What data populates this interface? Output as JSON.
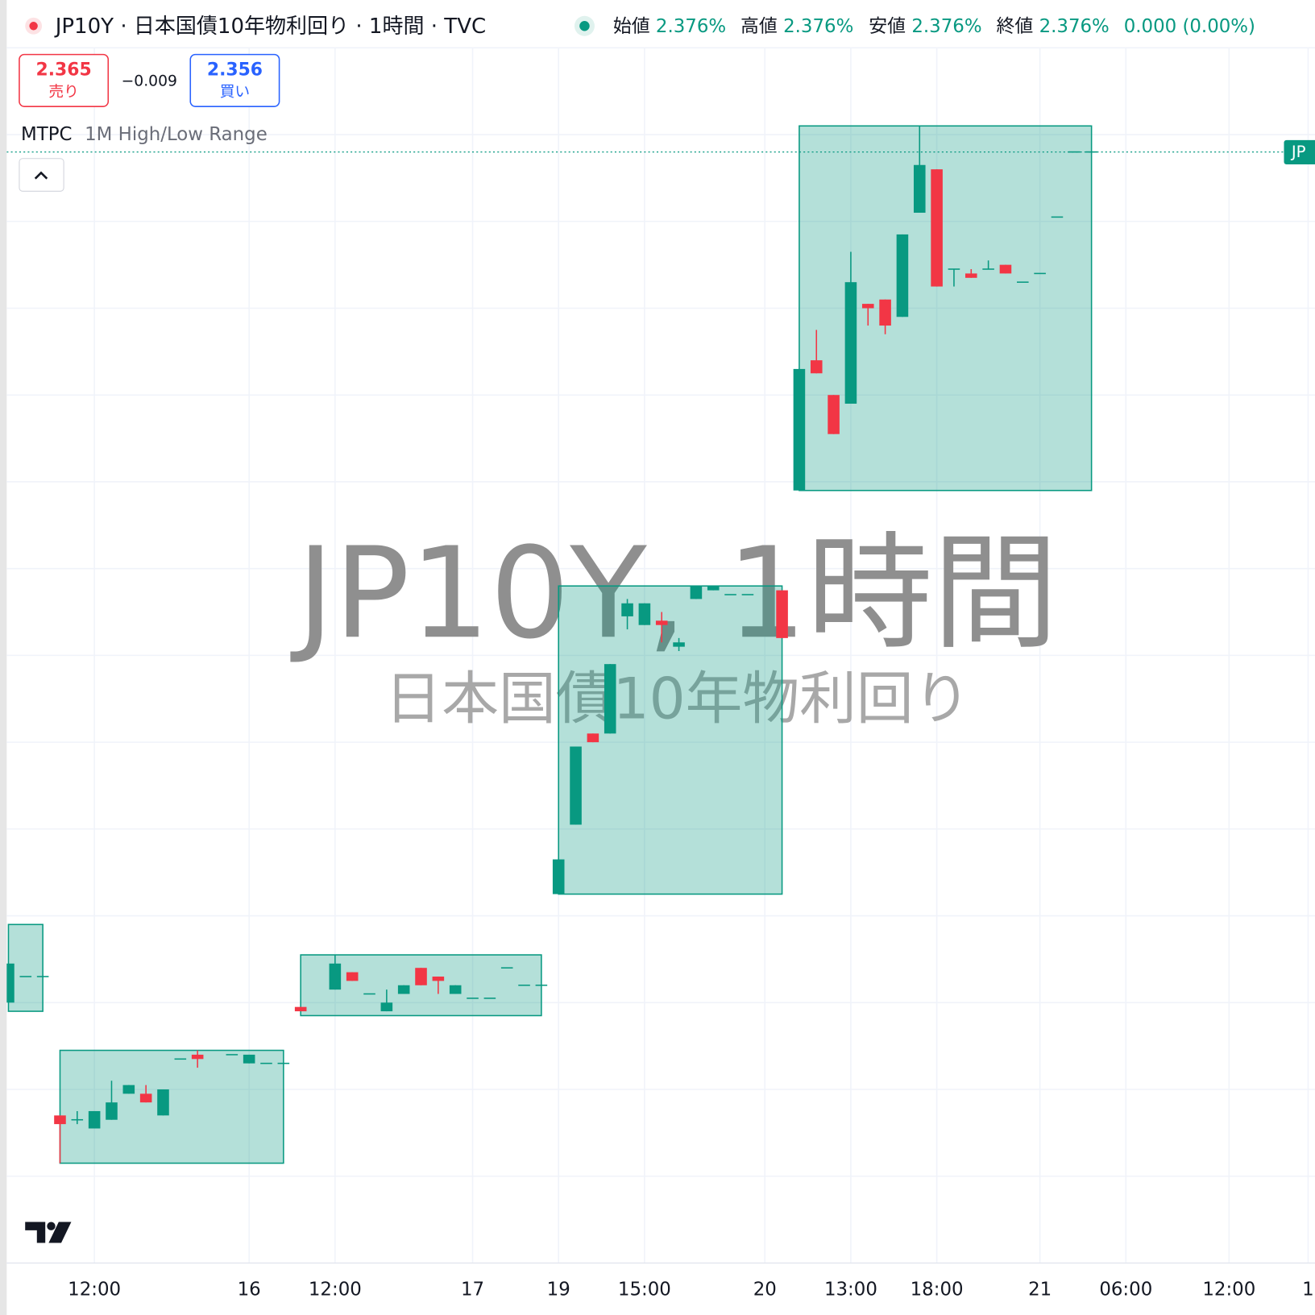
{
  "header": {
    "title": "JP10Y · 日本国債10年物利回り · 1時間 · TVC",
    "ohlc": [
      {
        "label": "始値",
        "value": "2.376%"
      },
      {
        "label": "高値",
        "value": "2.376%"
      },
      {
        "label": "安値",
        "value": "2.376%"
      },
      {
        "label": "終値",
        "value": "2.376%"
      }
    ],
    "change": "0.000 (0.00%)"
  },
  "trade": {
    "sell_price": "2.365",
    "sell_label": "売り",
    "spread": "−0.009",
    "buy_price": "2.356",
    "buy_label": "買い"
  },
  "indicator": {
    "name": "MTPC",
    "params": "1M High/Low Range"
  },
  "watermark": {
    "title": "JP10Y, 1時間",
    "subtitle": "日本国債10年物利回り"
  },
  "price_tag": "JP",
  "chart_data": {
    "type": "candlestick",
    "up_color": "#089981",
    "down_color": "#f23645",
    "range_color": "#089981",
    "x": [
      0,
      1,
      2,
      3,
      4,
      5,
      6,
      7,
      8,
      9,
      10,
      11,
      13,
      14,
      15,
      16,
      17,
      19,
      20,
      21,
      22,
      23,
      24,
      25,
      26,
      27,
      28,
      29,
      30,
      31,
      32,
      33,
      34,
      35,
      36,
      37,
      38,
      39,
      40,
      41,
      42,
      43,
      45,
      46,
      47,
      48,
      49,
      50,
      51,
      52,
      53,
      54,
      55,
      56,
      57,
      58,
      59,
      60,
      61,
      62,
      63
    ],
    "open": [
      2.18,
      2.186,
      2.186,
      2.154,
      2.153,
      2.151,
      2.153,
      2.159,
      2.159,
      2.154,
      2.167,
      2.168,
      2.168,
      2.166,
      2.166,
      2.166,
      2.179,
      2.183,
      2.187,
      2.182,
      2.178,
      2.182,
      2.188,
      2.186,
      2.182,
      2.181,
      2.181,
      2.188,
      2.184,
      2.184,
      2.205,
      2.221,
      2.242,
      2.242,
      2.269,
      2.267,
      2.268,
      2.262,
      2.273,
      2.275,
      2.274,
      2.274,
      2.275,
      2.298,
      2.328,
      2.32,
      2.318,
      2.341,
      2.342,
      2.338,
      2.362,
      2.372,
      2.349,
      2.348,
      2.349,
      2.35,
      2.346,
      2.348,
      2.361,
      2.376,
      2.376
    ],
    "high": [
      2.189,
      2.186,
      2.186,
      2.154,
      2.155,
      2.155,
      2.162,
      2.161,
      2.161,
      2.16,
      2.167,
      2.169,
      2.168,
      2.168,
      2.166,
      2.166,
      2.179,
      2.191,
      2.187,
      2.182,
      2.183,
      2.184,
      2.188,
      2.186,
      2.184,
      2.181,
      2.181,
      2.188,
      2.184,
      2.184,
      2.213,
      2.239,
      2.242,
      2.258,
      2.273,
      2.272,
      2.27,
      2.264,
      2.276,
      2.276,
      2.274,
      2.274,
      2.275,
      2.326,
      2.335,
      2.32,
      2.353,
      2.341,
      2.342,
      2.357,
      2.382,
      2.372,
      2.349,
      2.349,
      2.351,
      2.35,
      2.346,
      2.348,
      2.361,
      2.376,
      2.376
    ],
    "low": [
      2.18,
      2.186,
      2.186,
      2.143,
      2.152,
      2.151,
      2.153,
      2.159,
      2.157,
      2.154,
      2.167,
      2.165,
      2.168,
      2.166,
      2.166,
      2.166,
      2.178,
      2.183,
      2.185,
      2.182,
      2.178,
      2.182,
      2.184,
      2.182,
      2.182,
      2.181,
      2.181,
      2.188,
      2.184,
      2.184,
      2.205,
      2.221,
      2.24,
      2.242,
      2.266,
      2.267,
      2.263,
      2.261,
      2.273,
      2.275,
      2.274,
      2.274,
      2.264,
      2.298,
      2.325,
      2.311,
      2.318,
      2.336,
      2.334,
      2.338,
      2.362,
      2.345,
      2.345,
      2.347,
      2.349,
      2.348,
      2.346,
      2.348,
      2.361,
      2.376,
      2.376
    ],
    "close": [
      2.189,
      2.186,
      2.186,
      2.152,
      2.153,
      2.155,
      2.157,
      2.161,
      2.157,
      2.16,
      2.167,
      2.167,
      2.168,
      2.168,
      2.166,
      2.166,
      2.178,
      2.189,
      2.185,
      2.182,
      2.18,
      2.184,
      2.184,
      2.185,
      2.184,
      2.181,
      2.181,
      2.188,
      2.184,
      2.184,
      2.213,
      2.239,
      2.24,
      2.258,
      2.272,
      2.272,
      2.267,
      2.263,
      2.276,
      2.276,
      2.274,
      2.274,
      2.264,
      2.326,
      2.325,
      2.311,
      2.346,
      2.34,
      2.336,
      2.357,
      2.373,
      2.345,
      2.349,
      2.347,
      2.349,
      2.348,
      2.346,
      2.348,
      2.361,
      2.376,
      2.376
    ],
    "ranges": [
      {
        "start": 0,
        "end": 2,
        "high": 2.198,
        "low": 2.178
      },
      {
        "start": 3,
        "end": 16,
        "high": 2.169,
        "low": 2.143
      },
      {
        "start": 17,
        "end": 31,
        "high": 2.191,
        "low": 2.177
      },
      {
        "start": 32,
        "end": 45,
        "high": 2.276,
        "low": 2.205
      },
      {
        "start": 46,
        "end": 63,
        "high": 2.382,
        "low": 2.298
      }
    ],
    "last_price": 2.376,
    "xlim": [
      -0.1,
      76
    ],
    "xticks": [
      {
        "value": 5,
        "label": "12:00"
      },
      {
        "value": 14,
        "label": "16"
      },
      {
        "value": 19,
        "label": "12:00"
      },
      {
        "value": 27,
        "label": "17"
      },
      {
        "value": 32,
        "label": "19"
      },
      {
        "value": 37,
        "label": "15:00"
      },
      {
        "value": 44,
        "label": "20"
      },
      {
        "value": 49,
        "label": "13:00"
      },
      {
        "value": 54,
        "label": "18:00"
      },
      {
        "value": 60,
        "label": "21"
      },
      {
        "value": 65,
        "label": "06:00"
      },
      {
        "value": 71,
        "label": "12:00"
      },
      {
        "value": 75.6,
        "label": "1"
      }
    ],
    "ylim": [
      2.12,
      2.4
    ],
    "ygrid": [
      2.12,
      2.14,
      2.16,
      2.18,
      2.2,
      2.22,
      2.24,
      2.26,
      2.28,
      2.3,
      2.32,
      2.34,
      2.36,
      2.38,
      2.4
    ]
  }
}
